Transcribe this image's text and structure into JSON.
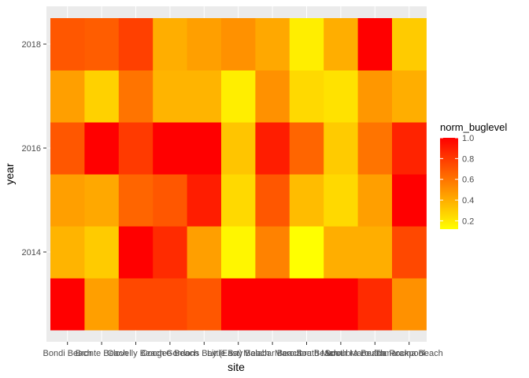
{
  "chart_data": {
    "type": "heatmap",
    "title": "",
    "xlabel": "site",
    "ylabel": "year",
    "x": [
      "Bondi Beach",
      "Bronte Beach",
      "Clovelly Beach",
      "Coogee Beach",
      "Gordons Bay (East)",
      "Little Bay Beach",
      "Malabar Beach",
      "Maroubra Beach",
      "South Maroubra Beach",
      "South Maroubra Rockpool",
      "Tamarama Beach"
    ],
    "y": [
      2013,
      2014,
      2015,
      2016,
      2017,
      2018
    ],
    "y_ticks": [
      2014,
      2016,
      2018
    ],
    "values": [
      [
        1.0,
        0.45,
        0.75,
        0.75,
        0.7,
        1.0,
        1.0,
        1.0,
        1.0,
        0.85,
        0.5
      ],
      [
        0.38,
        0.3,
        1.0,
        0.85,
        0.45,
        0.15,
        0.55,
        0.12,
        0.4,
        0.4,
        0.75
      ],
      [
        0.45,
        0.42,
        0.65,
        0.7,
        0.9,
        0.25,
        0.7,
        0.35,
        0.25,
        0.45,
        1.0
      ],
      [
        0.7,
        1.0,
        0.8,
        1.0,
        1.0,
        0.32,
        0.9,
        0.65,
        0.3,
        0.6,
        0.88
      ],
      [
        0.45,
        0.28,
        0.6,
        0.38,
        0.38,
        0.18,
        0.5,
        0.25,
        0.22,
        0.48,
        0.4
      ],
      [
        0.7,
        0.68,
        0.78,
        0.4,
        0.45,
        0.5,
        0.42,
        0.18,
        0.4,
        1.0,
        0.3
      ]
    ],
    "legend": {
      "title": "norm_buglevel",
      "ticks": [
        "1.0",
        "0.8",
        "0.6",
        "0.4",
        "0.2"
      ],
      "tick_values": [
        1.0,
        0.8,
        0.6,
        0.4,
        0.2
      ],
      "range": [
        0.12,
        1.0
      ],
      "low_color": "#ffff00",
      "high_color": "#ff0000",
      "placement": "right"
    },
    "panel_background": "#ebebeb"
  }
}
